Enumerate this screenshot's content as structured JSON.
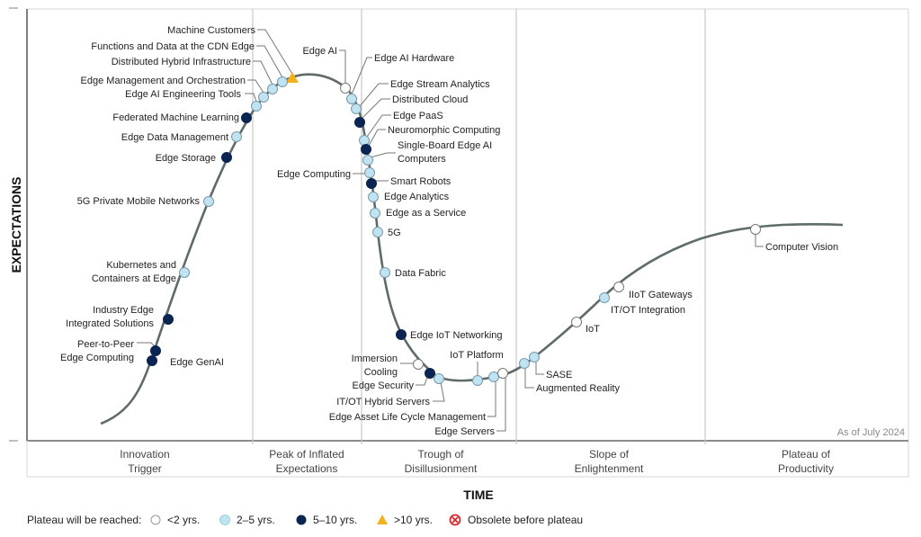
{
  "chart_data": {
    "type": "hype-cycle",
    "xlabel": "TIME",
    "ylabel": "EXPECTATIONS",
    "as_of": "As of July 2024",
    "phases": [
      {
        "line1": "Innovation",
        "line2": "Trigger"
      },
      {
        "line1": "Peak of Inflated",
        "line2": "Expectations"
      },
      {
        "line1": "Trough of",
        "line2": "Disillusionment"
      },
      {
        "line1": "Slope of",
        "line2": "Enlightenment"
      },
      {
        "line1": "Plateau of",
        "line2": "Productivity"
      }
    ],
    "legend": {
      "title": "Plateau will be reached:",
      "items": [
        {
          "key": "lt2",
          "label": "<2 yrs."
        },
        {
          "key": "2to5",
          "label": "2–5 yrs."
        },
        {
          "key": "5to10",
          "label": "5–10 yrs."
        },
        {
          "key": "gt10",
          "label": ">10 yrs."
        },
        {
          "key": "obsolete",
          "label": "Obsolete before plateau"
        }
      ]
    },
    "colors": {
      "lt2": "#ffffff",
      "2to5": "#bfe3f2",
      "5to10": "#0b2452",
      "gt10": "#f3b21b",
      "obsolete": "#d9262c",
      "curve": "#5f6b6b",
      "grid": "#c8c8c8"
    },
    "points": [
      {
        "name": "Machine Customers",
        "cat": "gt10"
      },
      {
        "name": "Functions and Data at the CDN Edge",
        "cat": "2to5"
      },
      {
        "name": "Distributed Hybrid Infrastructure",
        "cat": "2to5"
      },
      {
        "name": "Edge Management and Orchestration",
        "cat": "2to5"
      },
      {
        "name": "Edge AI Engineering Tools",
        "cat": "2to5"
      },
      {
        "name": "Federated Machine Learning",
        "cat": "5to10"
      },
      {
        "name": "Edge Data Management",
        "cat": "2to5"
      },
      {
        "name": "Edge Storage",
        "cat": "5to10"
      },
      {
        "name": "5G Private Mobile Networks",
        "cat": "2to5"
      },
      {
        "name": "Kubernetes and|Containers at Edge",
        "cat": "2to5"
      },
      {
        "name": "Industry Edge|Integrated Solutions",
        "cat": "5to10"
      },
      {
        "name": "Peer-to-Peer|Edge Computing",
        "cat": "5to10"
      },
      {
        "name": "Edge GenAI",
        "cat": "5to10"
      },
      {
        "name": "Edge AI",
        "cat": "lt2"
      },
      {
        "name": "Edge AI Hardware",
        "cat": "2to5"
      },
      {
        "name": "Edge Stream Analytics",
        "cat": "2to5"
      },
      {
        "name": "Distributed Cloud",
        "cat": "5to10"
      },
      {
        "name": "Edge PaaS",
        "cat": "2to5"
      },
      {
        "name": "Neuromorphic Computing",
        "cat": "5to10"
      },
      {
        "name": "Single-Board Edge AI|Computers",
        "cat": "2to5"
      },
      {
        "name": "Edge Computing",
        "cat": "2to5"
      },
      {
        "name": "Smart Robots",
        "cat": "5to10"
      },
      {
        "name": "Edge Analytics",
        "cat": "2to5"
      },
      {
        "name": "Edge as a Service",
        "cat": "2to5"
      },
      {
        "name": "5G",
        "cat": "2to5"
      },
      {
        "name": "Data Fabric",
        "cat": "2to5"
      },
      {
        "name": "Edge IoT Networking",
        "cat": "5to10"
      },
      {
        "name": "Immersion|Cooling",
        "cat": "lt2"
      },
      {
        "name": "Edge Security",
        "cat": "5to10"
      },
      {
        "name": "IT/OT Hybrid Servers",
        "cat": "2to5"
      },
      {
        "name": "IoT Platform",
        "cat": "2to5"
      },
      {
        "name": "Edge Asset Life Cycle Management",
        "cat": "2to5"
      },
      {
        "name": "Edge Servers",
        "cat": "lt2"
      },
      {
        "name": "Augmented Reality",
        "cat": "2to5"
      },
      {
        "name": "SASE",
        "cat": "2to5"
      },
      {
        "name": "IoT",
        "cat": "lt2"
      },
      {
        "name": "IT/OT Integration",
        "cat": "2to5"
      },
      {
        "name": "IIoT Gateways",
        "cat": "lt2"
      },
      {
        "name": "Computer Vision",
        "cat": "lt2"
      }
    ]
  }
}
